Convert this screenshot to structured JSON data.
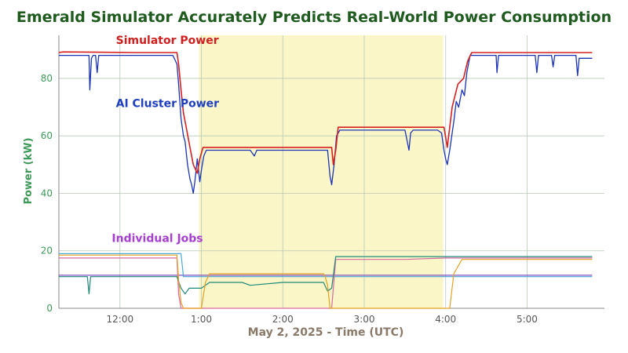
{
  "chart_data": {
    "type": "line",
    "title": "Emerald Simulator Accurately Predicts Real-World Power Consumption",
    "xlabel": "May 2, 2025 - Time (UTC)",
    "ylabel": "Power (kW)",
    "x_unit": "hours",
    "xlim": [
      11.25,
      17.95
    ],
    "ylim": [
      0,
      95
    ],
    "x_ticks": [
      {
        "value": 12.0,
        "label": "12:00"
      },
      {
        "value": 13.0,
        "label": "1:00"
      },
      {
        "value": 14.0,
        "label": "2:00"
      },
      {
        "value": 15.0,
        "label": "3:00"
      },
      {
        "value": 16.0,
        "label": "4:00"
      },
      {
        "value": 17.0,
        "label": "5:00"
      }
    ],
    "y_ticks": [
      {
        "value": 0,
        "label": "0"
      },
      {
        "value": 20,
        "label": "20"
      },
      {
        "value": 40,
        "label": "40"
      },
      {
        "value": 60,
        "label": "60"
      },
      {
        "value": 80,
        "label": "80"
      }
    ],
    "grid": true,
    "shaded_region": {
      "x_start": 12.97,
      "x_end": 15.97,
      "color": "#fbf6c8"
    },
    "annotations": [
      {
        "text": "Simulator Power",
        "color": "#d01f1f",
        "x": 11.95,
        "y": 92
      },
      {
        "text": "AI Cluster Power",
        "color": "#1e3fc0",
        "x": 11.95,
        "y": 70
      },
      {
        "text": "Individual Jobs",
        "color": "#a63fd1",
        "x": 11.9,
        "y": 23
      }
    ],
    "series": [
      {
        "name": "Simulator Power",
        "color": "#d62020",
        "width": 1.6,
        "points": [
          [
            11.25,
            89
          ],
          [
            11.3,
            89.2
          ],
          [
            12.2,
            89
          ],
          [
            12.7,
            89
          ],
          [
            12.72,
            85
          ],
          [
            12.75,
            76
          ],
          [
            12.78,
            68
          ],
          [
            12.82,
            62
          ],
          [
            12.86,
            56
          ],
          [
            12.9,
            50
          ],
          [
            12.95,
            47
          ],
          [
            12.98,
            52
          ],
          [
            13.02,
            56
          ],
          [
            13.6,
            56
          ],
          [
            14.5,
            56
          ],
          [
            14.6,
            56
          ],
          [
            14.62,
            50
          ],
          [
            14.65,
            55
          ],
          [
            14.68,
            63
          ],
          [
            15.2,
            63
          ],
          [
            15.6,
            63
          ],
          [
            15.98,
            63
          ],
          [
            16.02,
            56
          ],
          [
            16.08,
            70
          ],
          [
            16.15,
            78
          ],
          [
            16.22,
            80
          ],
          [
            16.27,
            86
          ],
          [
            16.32,
            89
          ],
          [
            17.1,
            89
          ],
          [
            17.8,
            89
          ]
        ]
      },
      {
        "name": "AI Cluster Power",
        "color": "#1a33b8",
        "width": 1.3,
        "points": [
          [
            11.25,
            88
          ],
          [
            11.5,
            88
          ],
          [
            11.62,
            88
          ],
          [
            11.63,
            76
          ],
          [
            11.65,
            87
          ],
          [
            11.67,
            88
          ],
          [
            11.7,
            88
          ],
          [
            11.72,
            82
          ],
          [
            11.74,
            88
          ],
          [
            12.2,
            88
          ],
          [
            12.45,
            88
          ],
          [
            12.55,
            88
          ],
          [
            12.65,
            88
          ],
          [
            12.7,
            85
          ],
          [
            12.72,
            78
          ],
          [
            12.75,
            66
          ],
          [
            12.78,
            60
          ],
          [
            12.8,
            58
          ],
          [
            12.83,
            50
          ],
          [
            12.86,
            45
          ],
          [
            12.88,
            43
          ],
          [
            12.9,
            40
          ],
          [
            12.92,
            44
          ],
          [
            12.95,
            52
          ],
          [
            12.98,
            44
          ],
          [
            13.0,
            48
          ],
          [
            13.03,
            53
          ],
          [
            13.06,
            55
          ],
          [
            13.2,
            55
          ],
          [
            13.4,
            55
          ],
          [
            13.6,
            55
          ],
          [
            13.65,
            53
          ],
          [
            13.68,
            55
          ],
          [
            14.0,
            55
          ],
          [
            14.2,
            55
          ],
          [
            14.4,
            55
          ],
          [
            14.5,
            55
          ],
          [
            14.55,
            55
          ],
          [
            14.58,
            46
          ],
          [
            14.6,
            43
          ],
          [
            14.63,
            50
          ],
          [
            14.66,
            60
          ],
          [
            14.7,
            62
          ],
          [
            15.0,
            62
          ],
          [
            15.1,
            62
          ],
          [
            15.5,
            62
          ],
          [
            15.55,
            55
          ],
          [
            15.57,
            61
          ],
          [
            15.6,
            62
          ],
          [
            15.9,
            62
          ],
          [
            15.95,
            61
          ],
          [
            15.98,
            55
          ],
          [
            16.0,
            52
          ],
          [
            16.02,
            50
          ],
          [
            16.05,
            55
          ],
          [
            16.1,
            65
          ],
          [
            16.13,
            72
          ],
          [
            16.16,
            70
          ],
          [
            16.2,
            76
          ],
          [
            16.23,
            74
          ],
          [
            16.26,
            82
          ],
          [
            16.3,
            88
          ],
          [
            16.5,
            88
          ],
          [
            16.62,
            88
          ],
          [
            16.63,
            82
          ],
          [
            16.65,
            88
          ],
          [
            16.8,
            88
          ],
          [
            17.0,
            88
          ],
          [
            17.1,
            88
          ],
          [
            17.12,
            82
          ],
          [
            17.14,
            88
          ],
          [
            17.3,
            88
          ],
          [
            17.32,
            84
          ],
          [
            17.34,
            88
          ],
          [
            17.5,
            88
          ],
          [
            17.6,
            88
          ],
          [
            17.62,
            81
          ],
          [
            17.64,
            87
          ],
          [
            17.8,
            87
          ]
        ]
      },
      {
        "name": "",
        "color": "#e8a020",
        "width": 1.2,
        "points": [
          [
            11.25,
            18.5
          ],
          [
            12.5,
            18.5
          ],
          [
            12.7,
            18.5
          ],
          [
            12.72,
            10
          ],
          [
            12.75,
            2
          ],
          [
            12.78,
            0
          ],
          [
            13.0,
            0
          ],
          [
            13.05,
            9
          ],
          [
            13.1,
            12
          ],
          [
            14.0,
            12
          ],
          [
            14.5,
            12
          ],
          [
            14.52,
            11
          ],
          [
            14.55,
            8
          ],
          [
            14.58,
            0
          ],
          [
            14.8,
            0
          ],
          [
            15.0,
            0
          ],
          [
            15.5,
            0
          ],
          [
            15.6,
            0
          ],
          [
            15.95,
            0
          ],
          [
            16.0,
            0
          ],
          [
            16.05,
            0
          ],
          [
            16.1,
            12
          ],
          [
            16.2,
            17
          ],
          [
            17.0,
            17
          ],
          [
            17.8,
            17
          ]
        ]
      },
      {
        "name": "",
        "color": "#1f8a7a",
        "width": 1.2,
        "points": [
          [
            11.25,
            11
          ],
          [
            11.5,
            11
          ],
          [
            11.6,
            11
          ],
          [
            11.62,
            5
          ],
          [
            11.64,
            11
          ],
          [
            12.5,
            11
          ],
          [
            12.7,
            11
          ],
          [
            12.75,
            7
          ],
          [
            12.8,
            5
          ],
          [
            12.85,
            7
          ],
          [
            12.9,
            7
          ],
          [
            13.0,
            7
          ],
          [
            13.1,
            9
          ],
          [
            13.5,
            9
          ],
          [
            13.6,
            8
          ],
          [
            14.0,
            9
          ],
          [
            14.5,
            9
          ],
          [
            14.55,
            6
          ],
          [
            14.6,
            7
          ],
          [
            14.65,
            18
          ],
          [
            15.0,
            18
          ],
          [
            15.5,
            18
          ],
          [
            16.0,
            18
          ],
          [
            16.5,
            18
          ],
          [
            17.0,
            18
          ],
          [
            17.8,
            18
          ]
        ]
      },
      {
        "name": "",
        "color": "#d56aa0",
        "width": 1.2,
        "points": [
          [
            11.25,
            17.5
          ],
          [
            12.5,
            17.5
          ],
          [
            12.7,
            17.5
          ],
          [
            12.72,
            5
          ],
          [
            12.75,
            0
          ],
          [
            13.0,
            0
          ],
          [
            13.5,
            0
          ],
          [
            14.0,
            0
          ],
          [
            14.5,
            0
          ],
          [
            14.6,
            0
          ],
          [
            14.65,
            17
          ],
          [
            15.0,
            17
          ],
          [
            15.5,
            17
          ],
          [
            16.0,
            17.5
          ],
          [
            16.5,
            17.5
          ],
          [
            17.0,
            17.5
          ],
          [
            17.8,
            17.5
          ]
        ]
      },
      {
        "name": "",
        "color": "#4aa8d8",
        "width": 1.2,
        "points": [
          [
            11.25,
            19
          ],
          [
            12.5,
            19
          ],
          [
            12.7,
            19
          ],
          [
            12.75,
            19
          ],
          [
            12.78,
            11
          ],
          [
            13.0,
            11
          ],
          [
            13.5,
            11
          ],
          [
            14.0,
            11
          ],
          [
            14.5,
            11
          ],
          [
            15.0,
            11
          ],
          [
            15.5,
            11
          ],
          [
            16.0,
            11
          ],
          [
            16.5,
            11
          ],
          [
            17.0,
            11
          ],
          [
            17.8,
            11
          ]
        ]
      },
      {
        "name": "",
        "color": "#8050c0",
        "width": 1.2,
        "points": [
          [
            11.25,
            11.5
          ],
          [
            12.0,
            11.5
          ],
          [
            13.0,
            11.5
          ],
          [
            14.0,
            11.5
          ],
          [
            15.0,
            11.5
          ],
          [
            16.0,
            11.5
          ],
          [
            16.5,
            11.5
          ],
          [
            17.0,
            11.5
          ],
          [
            17.8,
            11.5
          ]
        ]
      }
    ]
  }
}
